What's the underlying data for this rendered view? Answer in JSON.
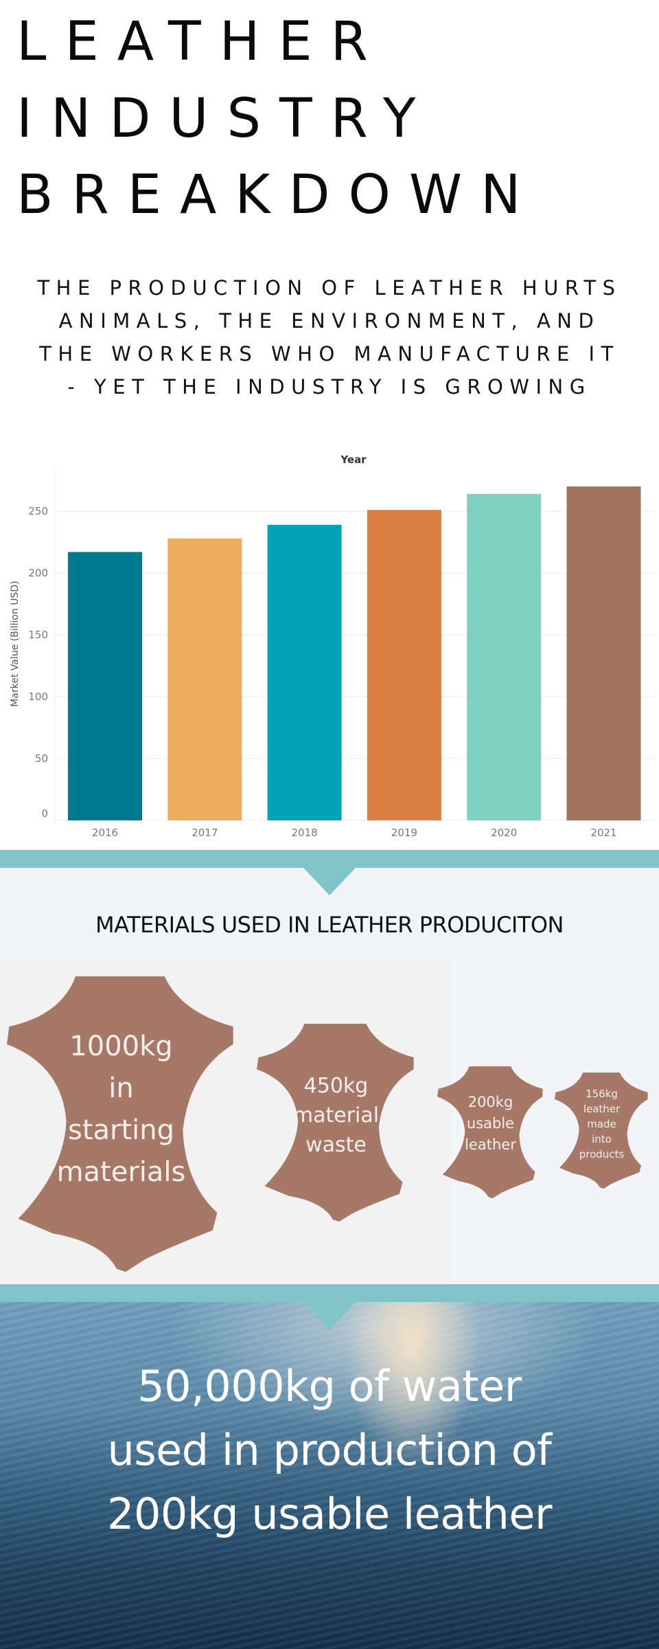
{
  "header": {
    "title_lines": [
      "LEATHER",
      "INDUSTRY",
      "BREAKDOWN"
    ],
    "subtitle_lines": [
      "THE PRODUCTION OF LEATHER HURTS",
      "ANIMALS, THE ENVIRONMENT, AND",
      "THE WORKERS WHO MANUFACTURE IT",
      "- YET THE INDUSTRY IS GROWING"
    ]
  },
  "chart_data": {
    "type": "bar",
    "title": "Year",
    "xlabel": "",
    "ylabel": "Market Value (Billion USD)",
    "categories": [
      "2016",
      "2017",
      "2018",
      "2019",
      "2020",
      "2021"
    ],
    "values": [
      217,
      228,
      239,
      251,
      264,
      270
    ],
    "colors": [
      "#007a8f",
      "#edab5e",
      "#00a4b5",
      "#d97f44",
      "#7fd1bf",
      "#a0735b"
    ],
    "yticks": [
      0,
      50,
      100,
      150,
      200,
      250
    ],
    "ylim": [
      0,
      285
    ],
    "grid": true,
    "legend": "none"
  },
  "materials": {
    "title": "MATERIALS USED IN LEATHER PRODUCITON",
    "hide_color": "#a67868",
    "items": [
      {
        "lines": [
          "1000kg",
          "in",
          "starting",
          "materials"
        ]
      },
      {
        "lines": [
          "450kg",
          "material",
          "waste"
        ]
      },
      {
        "lines": [
          "200kg",
          "usable",
          "leather"
        ]
      },
      {
        "lines": [
          "156kg",
          "leather",
          "made",
          "into",
          "products"
        ]
      }
    ]
  },
  "water": {
    "lines": [
      "50,000kg of water",
      "used in production of",
      "200kg usable leather"
    ]
  },
  "colors": {
    "band": "#80c3c9",
    "section_bg": "#f3f4f7"
  }
}
